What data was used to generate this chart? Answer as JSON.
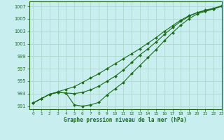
{
  "title": "Graphe pression niveau de la mer (hPa)",
  "background_color": "#c8eef0",
  "grid_color": "#b0d8cc",
  "line_color": "#1a6b1a",
  "xlim": [
    -0.5,
    23
  ],
  "ylim": [
    990.5,
    1007.8
  ],
  "yticks": [
    991,
    993,
    995,
    997,
    999,
    1001,
    1003,
    1005,
    1007
  ],
  "xticks": [
    0,
    1,
    2,
    3,
    4,
    5,
    6,
    7,
    8,
    9,
    10,
    11,
    12,
    13,
    14,
    15,
    16,
    17,
    18,
    19,
    20,
    21,
    22,
    23
  ],
  "x": [
    0,
    1,
    2,
    3,
    4,
    5,
    6,
    7,
    8,
    9,
    10,
    11,
    12,
    13,
    14,
    15,
    16,
    17,
    18,
    19,
    20,
    21,
    22,
    23
  ],
  "line1_straight": [
    991.5,
    992.2,
    992.9,
    993.3,
    993.7,
    994.1,
    994.8,
    995.5,
    996.2,
    997.0,
    997.8,
    998.6,
    999.4,
    1000.2,
    1001.1,
    1002.0,
    1003.0,
    1003.9,
    1004.8,
    1005.5,
    1006.0,
    1006.3,
    1006.6,
    1007.0
  ],
  "line2_mid": [
    991.5,
    992.2,
    992.9,
    993.2,
    993.1,
    993.0,
    993.2,
    993.6,
    994.2,
    995.0,
    995.8,
    996.8,
    998.0,
    999.2,
    1000.2,
    1001.3,
    1002.5,
    1003.6,
    1004.6,
    1005.4,
    1006.0,
    1006.4,
    1006.7,
    1007.1
  ],
  "line3_dip": [
    991.5,
    992.2,
    992.9,
    993.2,
    993.1,
    991.2,
    991.0,
    991.2,
    991.6,
    992.8,
    993.8,
    994.8,
    996.2,
    997.5,
    998.8,
    1000.1,
    1001.5,
    1002.8,
    1004.0,
    1005.0,
    1005.8,
    1006.2,
    1006.6,
    1007.1
  ]
}
